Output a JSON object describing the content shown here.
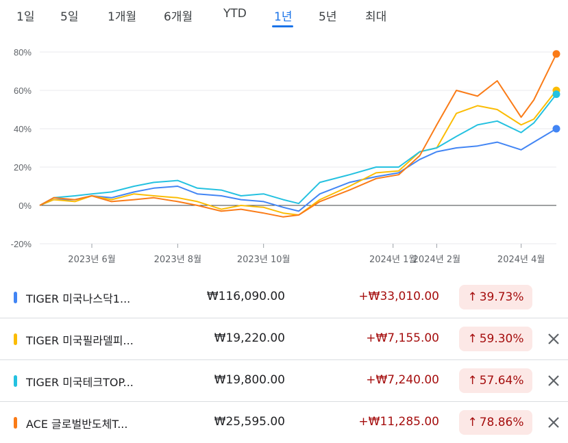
{
  "tabs": [
    {
      "label": "1일"
    },
    {
      "label": "5일"
    },
    {
      "label": "1개월"
    },
    {
      "label": "6개월"
    },
    {
      "label": "YTD"
    },
    {
      "label": "1년",
      "active": true
    },
    {
      "label": "5년"
    },
    {
      "label": "최대"
    }
  ],
  "rows": [
    {
      "name": "TIGER 미국나스닥1...",
      "price": "₩116,090.00",
      "change": "+₩33,010.00",
      "percent": "39.73%",
      "color": "#4285f4",
      "closable": false
    },
    {
      "name": "TIGER 미국필라델피...",
      "price": "₩19,220.00",
      "change": "+₩7,155.00",
      "percent": "59.30%",
      "color": "#fbbc04",
      "closable": true
    },
    {
      "name": "TIGER 미국테크TOP...",
      "price": "₩19,800.00",
      "change": "+₩7,240.00",
      "percent": "57.64%",
      "color": "#24c1e0",
      "closable": true
    },
    {
      "name": "ACE 글로벌반도체T...",
      "price": "₩25,595.00",
      "change": "+₩11,285.00",
      "percent": "78.86%",
      "color": "#fa7b17",
      "closable": true
    }
  ],
  "icons": {
    "up": "arrow-up-icon",
    "close": "close-icon"
  },
  "colors": {
    "active_tab": "#1a73e8",
    "gain_text": "#a50e0e",
    "gain_bg": "#fce8e6"
  },
  "chart_data": {
    "type": "line",
    "y_unit": "%",
    "ylim": [
      -20,
      80
    ],
    "yticks": [
      "80%",
      "60%",
      "40%",
      "20%",
      "0%",
      "-20%"
    ],
    "ytick_values": [
      80,
      60,
      40,
      20,
      0,
      -20
    ],
    "xticks": [
      "2023년 6월",
      "2023년 8월",
      "2023년 10월",
      "2024년 1월",
      "2024년 2월",
      "2024년 4월"
    ],
    "xtick_dates": [
      "2023-06-01",
      "2023-08-01",
      "2023-10-01",
      "2024-01-01",
      "2024-02-01",
      "2024-04-01"
    ],
    "x_range": [
      "2023-04-25",
      "2024-04-26"
    ],
    "grid": true,
    "series": [
      {
        "name": "TIGER 미국나스닥1...",
        "color": "#4285f4",
        "x": [
          "2023-04-25",
          "2023-05-05",
          "2023-05-20",
          "2023-06-01",
          "2023-06-15",
          "2023-07-01",
          "2023-07-15",
          "2023-08-01",
          "2023-08-15",
          "2023-09-01",
          "2023-09-15",
          "2023-10-01",
          "2023-10-15",
          "2023-10-26",
          "2023-11-10",
          "2023-12-01",
          "2023-12-20",
          "2024-01-05",
          "2024-01-20",
          "2024-02-01",
          "2024-02-15",
          "2024-03-01",
          "2024-03-15",
          "2024-04-01",
          "2024-04-10",
          "2024-04-26"
        ],
        "y": [
          0,
          3,
          3,
          5,
          4,
          7,
          9,
          10,
          6,
          5,
          3,
          2,
          -1,
          -3,
          6,
          12,
          15,
          17,
          24,
          28,
          30,
          31,
          33,
          29,
          33,
          40
        ]
      },
      {
        "name": "TIGER 미국필라델피...",
        "color": "#fbbc04",
        "x": [
          "2023-04-25",
          "2023-05-05",
          "2023-05-20",
          "2023-06-01",
          "2023-06-15",
          "2023-07-01",
          "2023-07-15",
          "2023-08-01",
          "2023-08-15",
          "2023-09-01",
          "2023-09-15",
          "2023-10-01",
          "2023-10-15",
          "2023-10-26",
          "2023-11-10",
          "2023-12-01",
          "2023-12-20",
          "2024-01-05",
          "2024-01-20",
          "2024-02-01",
          "2024-02-15",
          "2024-03-01",
          "2024-03-15",
          "2024-04-01",
          "2024-04-10",
          "2024-04-26"
        ],
        "y": [
          0,
          3,
          2,
          5,
          3,
          6,
          5,
          4,
          2,
          -2,
          0,
          -1,
          -4,
          -5,
          3,
          10,
          17,
          18,
          28,
          30,
          48,
          52,
          50,
          42,
          45,
          60
        ]
      },
      {
        "name": "TIGER 미국테크TOP...",
        "color": "#24c1e0",
        "x": [
          "2023-04-25",
          "2023-05-05",
          "2023-05-20",
          "2023-06-01",
          "2023-06-15",
          "2023-07-01",
          "2023-07-15",
          "2023-08-01",
          "2023-08-15",
          "2023-09-01",
          "2023-09-15",
          "2023-10-01",
          "2023-10-15",
          "2023-10-26",
          "2023-11-10",
          "2023-12-01",
          "2023-12-20",
          "2024-01-05",
          "2024-01-20",
          "2024-02-01",
          "2024-02-15",
          "2024-03-01",
          "2024-03-15",
          "2024-04-01",
          "2024-04-10",
          "2024-04-26"
        ],
        "y": [
          0,
          4,
          5,
          6,
          7,
          10,
          12,
          13,
          9,
          8,
          5,
          6,
          3,
          1,
          12,
          16,
          20,
          20,
          28,
          30,
          36,
          42,
          44,
          38,
          43,
          58
        ]
      },
      {
        "name": "ACE 글로벌반도체T...",
        "color": "#fa7b17",
        "x": [
          "2023-04-25",
          "2023-05-05",
          "2023-05-20",
          "2023-06-01",
          "2023-06-15",
          "2023-07-01",
          "2023-07-15",
          "2023-08-01",
          "2023-08-15",
          "2023-09-01",
          "2023-09-15",
          "2023-10-01",
          "2023-10-15",
          "2023-10-26",
          "2023-11-10",
          "2023-12-01",
          "2023-12-20",
          "2024-01-05",
          "2024-01-20",
          "2024-02-01",
          "2024-02-15",
          "2024-03-01",
          "2024-03-15",
          "2024-04-01",
          "2024-04-10",
          "2024-04-26"
        ],
        "y": [
          0,
          4,
          3,
          5,
          2,
          3,
          4,
          2,
          0,
          -3,
          -2,
          -4,
          -6,
          -5,
          2,
          8,
          14,
          16,
          26,
          42,
          60,
          57,
          65,
          46,
          55,
          79
        ]
      }
    ]
  }
}
